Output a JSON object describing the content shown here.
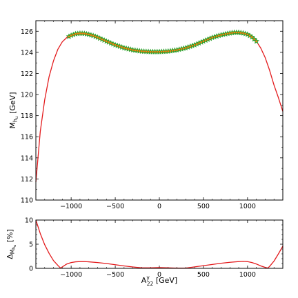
{
  "chart_data": [
    {
      "type": "line",
      "panel": "main",
      "ylabel": "M_{h_u} [GeV]",
      "ylabel_main": "M",
      "ylabel_sub": "h",
      "ylabel_subsub": "u",
      "ylabel_unit": "[GeV]",
      "xlim": [
        -1400,
        1400
      ],
      "ylim": [
        110,
        127
      ],
      "xticks": [
        -1000,
        -500,
        0,
        500,
        1000
      ],
      "xtick_labels": [
        "−1000",
        "−500",
        "0",
        "500",
        "1000"
      ],
      "yticks": [
        110,
        112,
        114,
        116,
        118,
        120,
        122,
        124,
        126
      ],
      "yticks_minor": [
        111,
        113,
        115,
        117,
        119,
        121,
        123,
        125
      ],
      "show_xtick_labels": true,
      "grid": false,
      "series": [
        {
          "marker": "line",
          "color": "#e31a1c",
          "x": [
            -1400,
            -1350,
            -1300,
            -1250,
            -1200,
            -1150,
            -1100,
            -1050,
            -1000,
            -950,
            -900,
            -850,
            -800,
            -750,
            -700,
            -600,
            -500,
            -400,
            -300,
            -200,
            -100,
            0,
            100,
            200,
            300,
            400,
            500,
            600,
            700,
            800,
            850,
            900,
            950,
            1000,
            1050,
            1100,
            1150,
            1200,
            1250,
            1300,
            1350,
            1400
          ],
          "y": [
            111.7,
            116.5,
            119.5,
            121.7,
            123.2,
            124.3,
            125.0,
            125.4,
            125.6,
            125.75,
            125.8,
            125.78,
            125.7,
            125.58,
            125.42,
            125.05,
            124.7,
            124.42,
            124.22,
            124.1,
            124.05,
            124.05,
            124.1,
            124.22,
            124.42,
            124.7,
            125.05,
            125.4,
            125.65,
            125.82,
            125.88,
            125.88,
            125.82,
            125.7,
            125.45,
            125.05,
            124.4,
            123.5,
            122.3,
            120.9,
            119.7,
            118.4
          ]
        },
        {
          "marker": "star",
          "color": "#2ca02c",
          "x_start": -1025,
          "x_end": 1100,
          "x_step": 25
        },
        {
          "marker": "dot",
          "color": "#ff7f0e",
          "x_start": -1025,
          "x_end": 1100,
          "x_step": 25
        }
      ]
    },
    {
      "type": "line",
      "panel": "ratio",
      "ylabel": "Δ_{M_{h_u}} [%]",
      "ylabel_main": "Δ",
      "ylabel_sub": "M",
      "ylabel_subsub": "h",
      "ylabel_subsubsub": "u",
      "ylabel_unit": "[%]",
      "xlabel": "A^y_{22} [GeV]",
      "xlabel_main": "A",
      "xlabel_sup": "y",
      "xlabel_sub": "22",
      "xlabel_unit": "[GeV]",
      "xlim": [
        -1400,
        1400
      ],
      "ylim": [
        0,
        10
      ],
      "xticks": [
        -1000,
        -500,
        0,
        500,
        1000
      ],
      "xtick_labels": [
        "−1000",
        "−500",
        "0",
        "500",
        "1000"
      ],
      "yticks": [
        0,
        5,
        10
      ],
      "yticks_minor": [
        1,
        2,
        3,
        4,
        6,
        7,
        8,
        9
      ],
      "grid": false,
      "series": [
        {
          "marker": "line",
          "color": "#e31a1c",
          "x": [
            -1400,
            -1350,
            -1300,
            -1250,
            -1200,
            -1150,
            -1120,
            -1100,
            -1050,
            -1000,
            -950,
            -900,
            -850,
            -800,
            -700,
            -600,
            -500,
            -400,
            -300,
            -200,
            -100,
            0,
            100,
            200,
            300,
            400,
            500,
            600,
            700,
            800,
            900,
            950,
            1000,
            1050,
            1100,
            1150,
            1200,
            1230,
            1250,
            1300,
            1350,
            1400
          ],
          "y": [
            10.0,
            7.2,
            4.9,
            3.1,
            1.6,
            0.6,
            0.05,
            0.3,
            0.9,
            1.2,
            1.35,
            1.4,
            1.4,
            1.35,
            1.2,
            1.0,
            0.75,
            0.5,
            0.28,
            0.1,
            0.1,
            0.15,
            0.1,
            0.05,
            0.05,
            0.3,
            0.55,
            0.8,
            1.05,
            1.25,
            1.4,
            1.45,
            1.4,
            1.2,
            0.9,
            0.5,
            0.2,
            0.05,
            0.4,
            1.5,
            3.0,
            4.6
          ]
        }
      ]
    }
  ]
}
